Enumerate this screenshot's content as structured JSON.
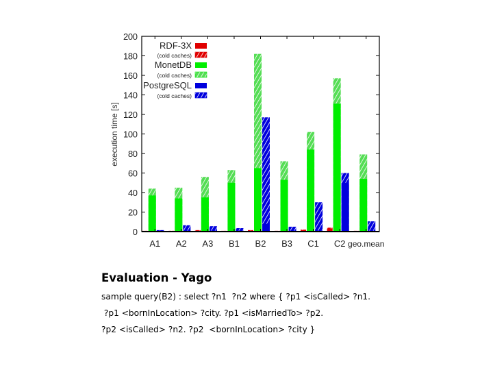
{
  "chart_data": {
    "type": "bar",
    "title": "",
    "xlabel": "",
    "ylabel": "execution time [s]",
    "ylim": [
      0,
      200
    ],
    "yticks": [
      0,
      20,
      40,
      60,
      80,
      100,
      120,
      140,
      160,
      180,
      200
    ],
    "grid": false,
    "legend_position": "top-left",
    "categories": [
      "A1",
      "A2",
      "A3",
      "B1",
      "B2",
      "B3",
      "C1",
      "C2",
      "geo.mean"
    ],
    "series": [
      {
        "name": "RDF-3X",
        "color": "#e00000",
        "pattern": "solid",
        "values": [
          0.5,
          0.5,
          1,
          0.5,
          1,
          0.5,
          1.5,
          3,
          0.5
        ]
      },
      {
        "name": "RDF-3X (cold caches)",
        "color": "#e00000",
        "pattern": "hatched",
        "values": [
          0.8,
          0.8,
          1.5,
          0.8,
          1.5,
          0.8,
          2,
          4,
          0.8
        ]
      },
      {
        "name": "MonetDB",
        "color": "#00ee00",
        "pattern": "solid",
        "values": [
          37,
          34,
          35,
          50,
          65,
          53,
          84,
          131,
          54
        ]
      },
      {
        "name": "MonetDB (cold caches)",
        "color": "#00ee00",
        "pattern": "hatched",
        "values": [
          44,
          45,
          56,
          63,
          182,
          72,
          102,
          157,
          79
        ]
      },
      {
        "name": "PostgreSQL",
        "color": "#0000dd",
        "pattern": "solid",
        "values": [
          1,
          1,
          1,
          1,
          8,
          1,
          1,
          50,
          1
        ]
      },
      {
        "name": "PostgreSQL (cold caches)",
        "color": "#0000dd",
        "pattern": "hatched",
        "values": [
          1.5,
          6.5,
          5.5,
          3.5,
          117,
          5,
          30,
          60,
          10.5
        ]
      }
    ],
    "legend": [
      {
        "label": "RDF-3X",
        "color": "#e00000",
        "pattern": "solid",
        "size": "large"
      },
      {
        "label": "(cold caches)",
        "color": "#e00000",
        "pattern": "hatched",
        "size": "small"
      },
      {
        "label": "MonetDB",
        "color": "#00ee00",
        "pattern": "solid",
        "size": "large"
      },
      {
        "label": "(cold caches)",
        "color": "#00ee00",
        "pattern": "hatched",
        "size": "small"
      },
      {
        "label": "PostgreSQL",
        "color": "#0000dd",
        "pattern": "solid",
        "size": "large"
      },
      {
        "label": "(cold caches)",
        "color": "#0000dd",
        "pattern": "hatched",
        "size": "small"
      }
    ]
  },
  "caption": {
    "title": "Evaluation - Yago",
    "lines": [
      "sample query(B2) : select ?n1  ?n2 where { ?p1 <isCalled> ?n1.",
      " ?p1 <bornInLocation> ?city. ?p1 <isMarriedTo> ?p2.",
      "?p2 <isCalled> ?n2. ?p2  <bornInLocation> ?city }"
    ]
  }
}
